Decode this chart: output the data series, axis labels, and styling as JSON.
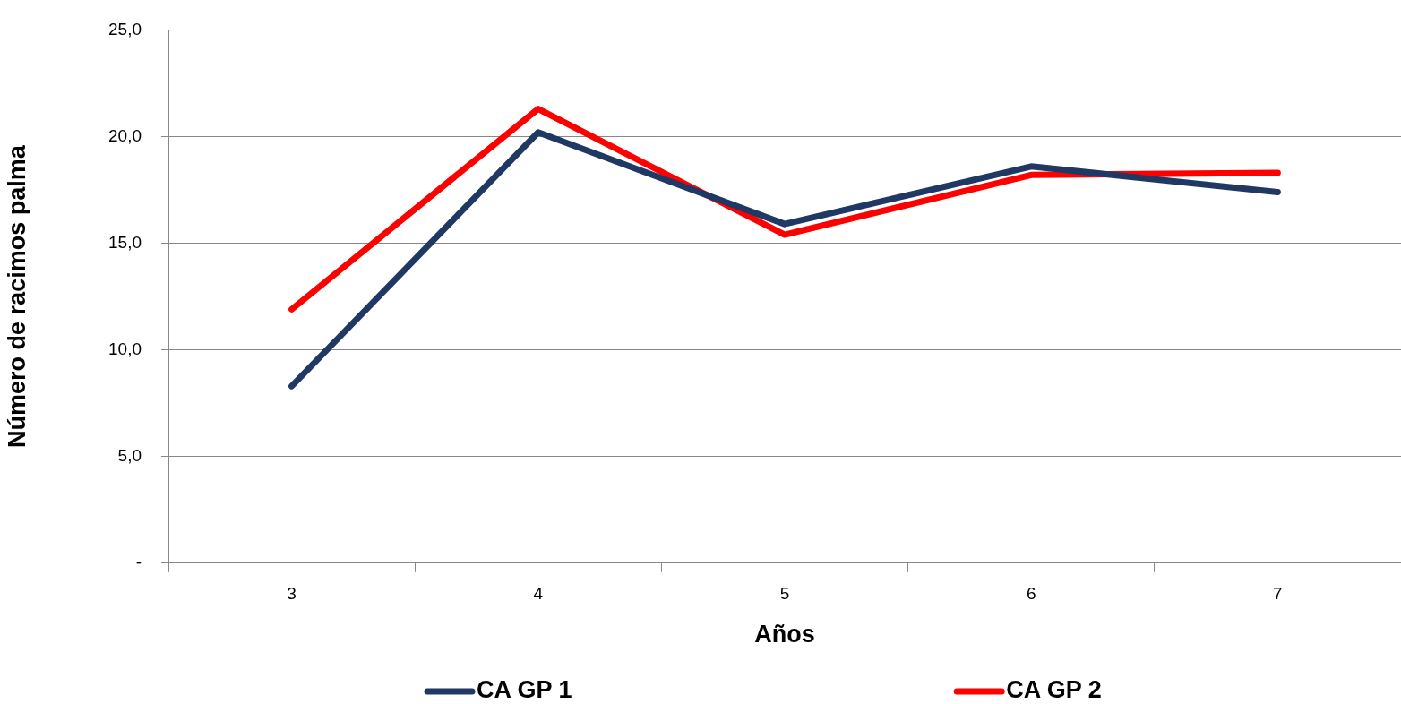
{
  "chart_data": {
    "type": "line",
    "xlabel": "Años",
    "ylabel": "Número de racimos palma",
    "categories": [
      "3",
      "4",
      "5",
      "6",
      "7"
    ],
    "series": [
      {
        "name": "CA GP 1",
        "color": "#1f3864",
        "values": [
          8.3,
          20.2,
          15.9,
          18.6,
          17.4
        ]
      },
      {
        "name": "CA GP 2",
        "color": "#ff0000",
        "values": [
          11.9,
          21.3,
          15.4,
          18.2,
          18.3
        ]
      }
    ],
    "ylim": [
      0,
      25
    ],
    "yticks": [
      {
        "value": 0,
        "label": "-"
      },
      {
        "value": 5,
        "label": "5,0"
      },
      {
        "value": 10,
        "label": "10,0"
      },
      {
        "value": 15,
        "label": "15,0"
      },
      {
        "value": 20,
        "label": "20,0"
      },
      {
        "value": 25,
        "label": "25,0"
      }
    ],
    "grid": "y",
    "legend": "bottom",
    "marker": "none",
    "line_style": "solid"
  }
}
